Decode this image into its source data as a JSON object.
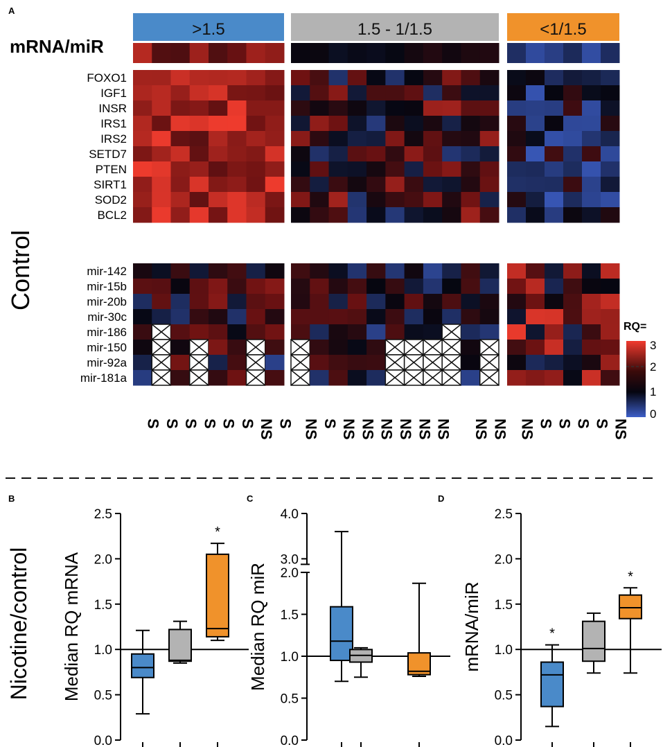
{
  "panel_labels": {
    "a": "A",
    "b": "B",
    "c": "C",
    "d": "D"
  },
  "heatmap": {
    "ratio_label": "mRNA/miR",
    "condition_label": "Control",
    "groups": [
      {
        "label": ">1.5",
        "color": "#4a8ac9"
      },
      {
        "label": "1.5 - 1/1.5",
        "color": "#b3b3b3"
      },
      {
        "label": "<1/1.5",
        "color": "#f0922b"
      }
    ],
    "genes": [
      "FOXO1",
      "IGF1",
      "INSR",
      "IRS1",
      "IRS2",
      "SETD7",
      "PTEN",
      "SIRT1",
      "SOD2",
      "BCL2"
    ],
    "mirs": [
      "mir-142",
      "mir-15b",
      "mir-20b",
      "mir-30c",
      "mir-186",
      "mir-150",
      "mir-92a",
      "mir-181a"
    ],
    "smoker_status": [
      [
        "S",
        "S",
        "S",
        "S",
        "S",
        "S",
        "NS",
        "S"
      ],
      [
        "NS",
        "S",
        "NS",
        "NS",
        "NS",
        "NS",
        "NS",
        "NS",
        "",
        "NS",
        "NS"
      ],
      [
        "NS",
        "S",
        "S",
        "S",
        "S",
        "NS"
      ]
    ],
    "legend": {
      "title": "RQ=",
      "ticks": [
        "3",
        "2",
        "1",
        "0"
      ]
    }
  },
  "chart_data": [
    {
      "type": "box",
      "panel": "B",
      "title": "",
      "shared_ylabel": "Nicotine/control",
      "ylabel": "Median RQ mRNA",
      "ylim": [
        0,
        2.5
      ],
      "yticks": [
        "0.0",
        "0.5",
        "1.0",
        "1.5",
        "2.0",
        "2.5"
      ],
      "reference_line": 1.0,
      "series": [
        {
          "name": ">1.5",
          "color": "#4a8ac9",
          "min": 0.29,
          "q1": 0.69,
          "median": 0.8,
          "q3": 0.95,
          "max": 1.21,
          "annotation": ""
        },
        {
          "name": "1.5 - 1/1.5",
          "color": "#b3b3b3",
          "min": 0.85,
          "q1": 0.87,
          "median": 0.88,
          "q3": 1.22,
          "max": 1.31,
          "annotation": ""
        },
        {
          "name": "<1/1.5",
          "color": "#f0922b",
          "min": 1.1,
          "q1": 1.14,
          "median": 1.23,
          "q3": 2.05,
          "max": 2.17,
          "annotation": "*"
        }
      ]
    },
    {
      "type": "box",
      "panel": "C",
      "ylabel": "Median RQ miR",
      "ylim": [
        0,
        4.0
      ],
      "axis_break": [
        2.0,
        3.0
      ],
      "yticks": [
        "0.0",
        "0.5",
        "1.0",
        "1.5",
        "2.0",
        "3.0",
        "4.0"
      ],
      "reference_line": 1.0,
      "series": [
        {
          "name": ">1.5",
          "color": "#4a8ac9",
          "min": 0.7,
          "q1": 0.95,
          "median": 1.18,
          "q3": 1.59,
          "max": 3.6,
          "annotation": ""
        },
        {
          "name": "1.5 - 1/1.5",
          "color": "#b3b3b3",
          "min": 0.75,
          "q1": 0.93,
          "median": 1.01,
          "q3": 1.08,
          "max": 1.1,
          "annotation": ""
        },
        {
          "name": "<1/1.5",
          "color": "#f0922b",
          "min": 0.76,
          "q1": 0.78,
          "median": 0.82,
          "q3": 1.04,
          "max": 1.87,
          "annotation": ""
        }
      ]
    },
    {
      "type": "box",
      "panel": "D",
      "ylabel": "mRNA/miR",
      "ylim": [
        0,
        2.5
      ],
      "yticks": [
        "0.0",
        "0.5",
        "1.0",
        "1.5",
        "2.0",
        "2.5"
      ],
      "reference_line": 1.0,
      "series": [
        {
          "name": ">1.5",
          "color": "#4a8ac9",
          "min": 0.15,
          "q1": 0.37,
          "median": 0.72,
          "q3": 0.86,
          "max": 1.05,
          "annotation": "*"
        },
        {
          "name": "1.5 - 1/1.5",
          "color": "#b3b3b3",
          "min": 0.74,
          "q1": 0.87,
          "median": 1.01,
          "q3": 1.31,
          "max": 1.4,
          "annotation": ""
        },
        {
          "name": "<1/1.5",
          "color": "#f0922b",
          "min": 0.74,
          "q1": 1.34,
          "median": 1.46,
          "q3": 1.6,
          "max": 1.68,
          "annotation": "*"
        }
      ]
    }
  ]
}
